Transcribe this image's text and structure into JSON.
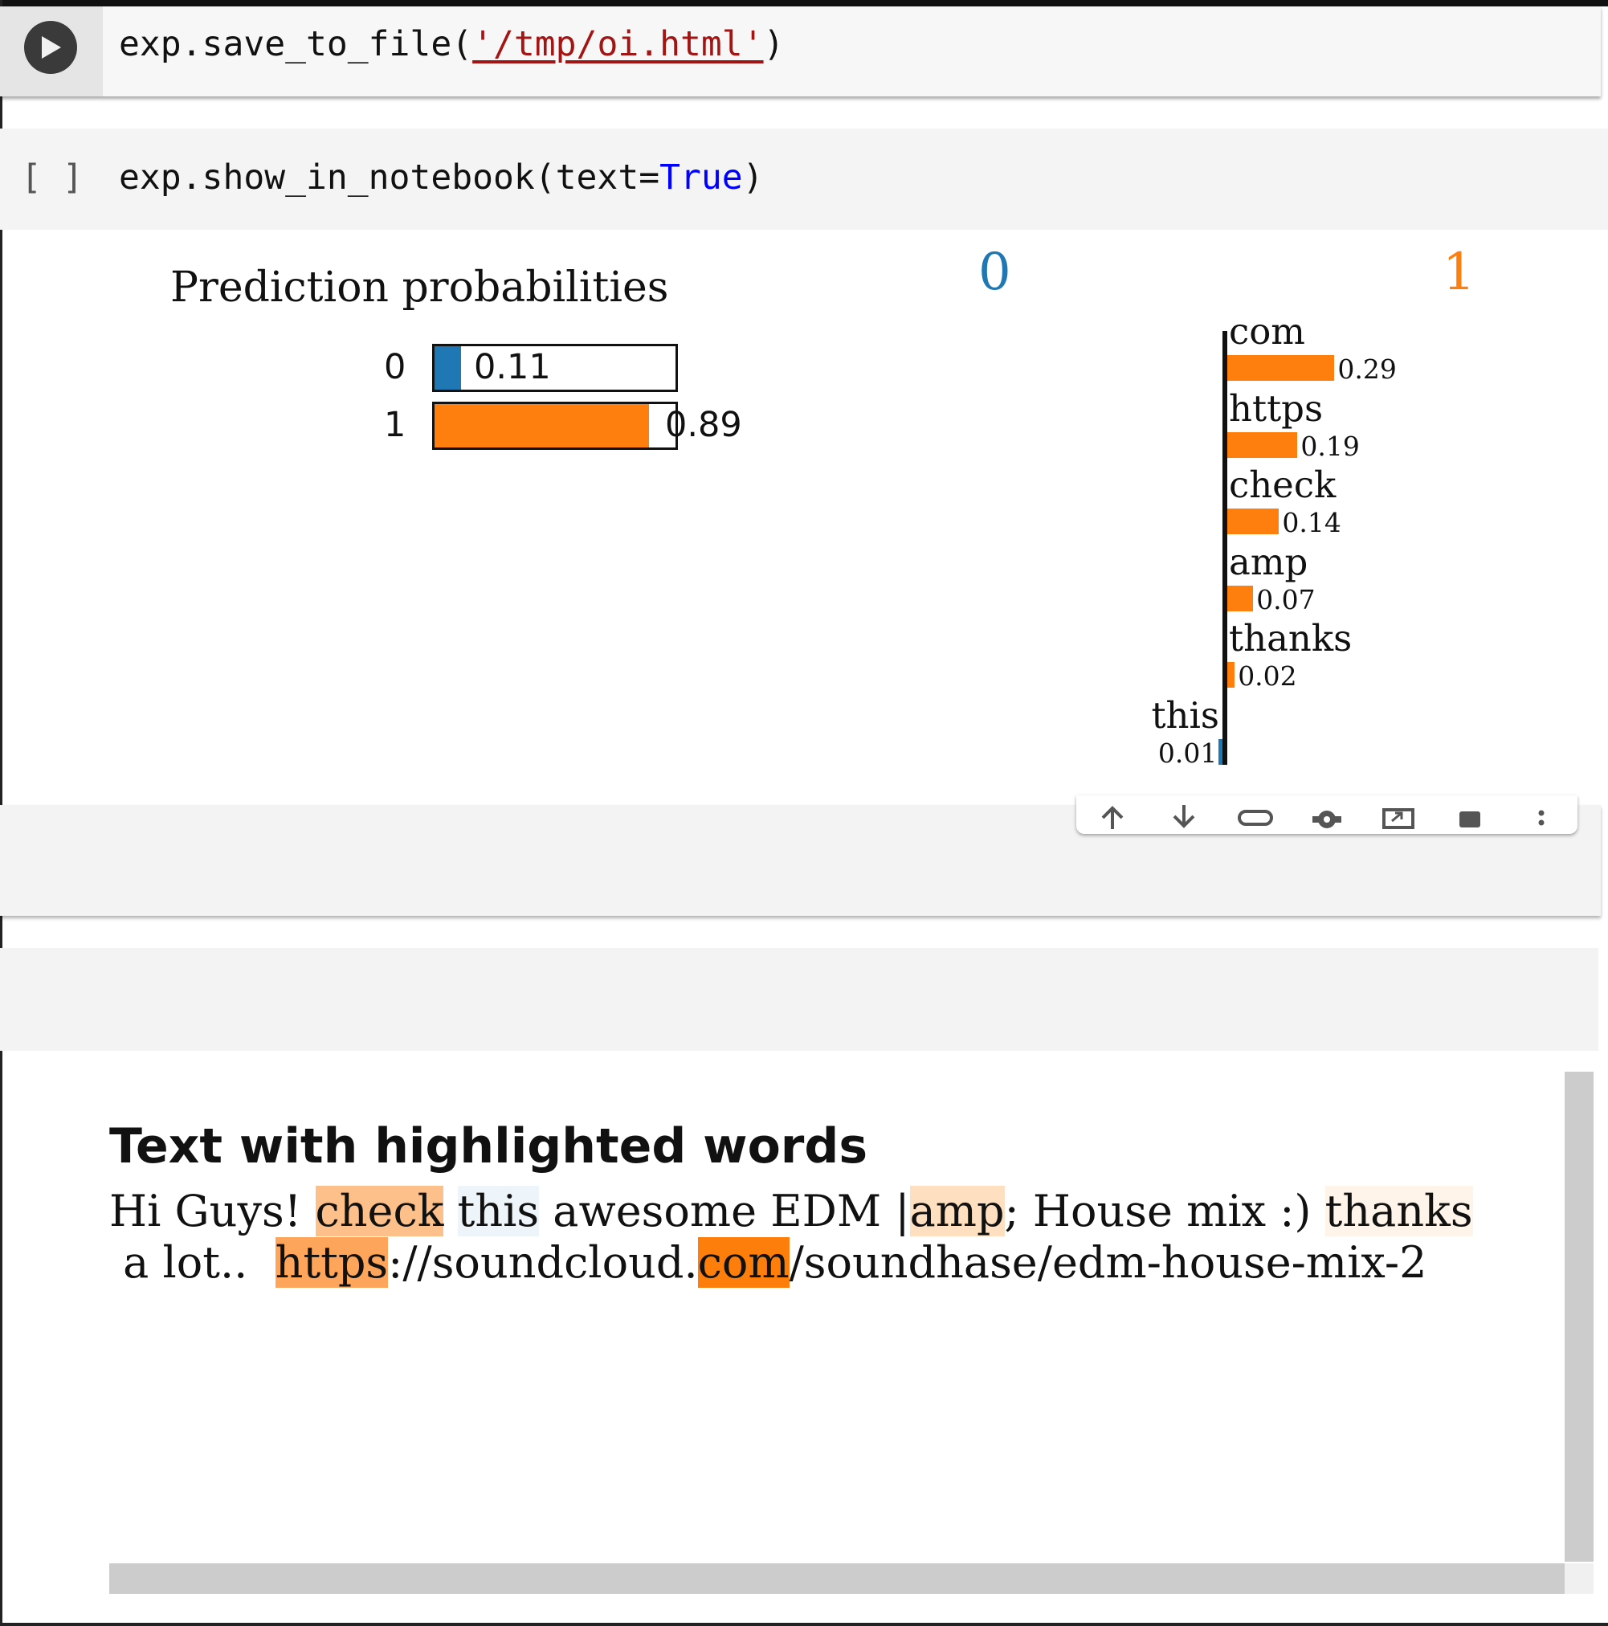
{
  "cells": {
    "first": {
      "code_prefix": "exp.save_to_file(",
      "code_string": "'/tmp/oi.html'",
      "code_suffix": ")"
    },
    "second": {
      "brackets": "[ ]",
      "code_prefix": "exp.show_in_notebook(text=",
      "code_keyword": "True",
      "code_suffix": ")"
    }
  },
  "output": {
    "prediction": {
      "title": "Prediction probabilities",
      "rows": [
        {
          "label": "0",
          "value": "0.11",
          "fraction": 0.11,
          "color": "#1f77b4"
        },
        {
          "label": "1",
          "value": "0.89",
          "fraction": 0.89,
          "color": "#ff7f0e"
        }
      ]
    },
    "class_headers": {
      "left": "0",
      "right": "1",
      "left_color": "#1f77b4",
      "right_color": "#ff7f0e"
    },
    "chart_data": {
      "type": "bar",
      "orientation": "horizontal",
      "categories": [
        "com",
        "https",
        "check",
        "amp",
        "thanks",
        "this"
      ],
      "values": [
        0.29,
        0.19,
        0.14,
        0.07,
        0.02,
        -0.01
      ],
      "value_labels": [
        "0.29",
        "0.19",
        "0.14",
        "0.07",
        "0.02",
        "0.01"
      ],
      "colors": [
        "#ff7f0e",
        "#ff7f0e",
        "#ff7f0e",
        "#ff7f0e",
        "#ff7f0e",
        "#1f77b4"
      ],
      "title": "",
      "xlabel": "",
      "ylabel": ""
    },
    "toolbar": {
      "icons": [
        "arrow-up-icon",
        "arrow-down-icon",
        "link-icon",
        "gear-icon",
        "open-external-icon",
        "delete-icon",
        "more-vert-icon"
      ]
    },
    "highlight": {
      "title": "Text with highlighted words",
      "segments": {
        "s1": "Hi Guys! ",
        "check": "check",
        "s2": " ",
        "this": "this",
        "s3": " awesome EDM |",
        "amp": "amp",
        "s4": "; House mix :) ",
        "thanks": "thanks",
        "s5": " a lot..  ",
        "https": "https",
        "s6": "://soundcloud.",
        "com": "com",
        "s7": "/soundhase/edm-house-mix-2"
      }
    }
  }
}
